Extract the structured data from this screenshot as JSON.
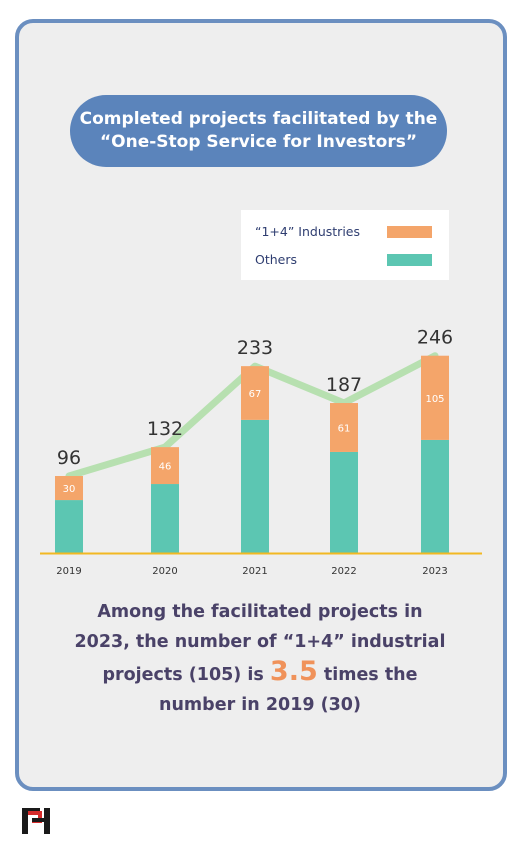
{
  "title": {
    "line1": "Completed projects facilitated by the",
    "line2": "“One-Stop Service for Investors”"
  },
  "legend": {
    "item1": "“1+4” Industries",
    "item2": "Others"
  },
  "colors": {
    "industries": "#f4a56a",
    "others": "#5cc6b2",
    "trend": "#b7e0b0",
    "baseline": "#f2b822",
    "accent": "#f0925a"
  },
  "chart_data": {
    "type": "bar",
    "stacked": true,
    "categories": [
      "2019",
      "2020",
      "2021",
      "2022",
      "2023"
    ],
    "series": [
      {
        "name": "Others",
        "values": [
          66,
          86,
          166,
          126,
          141
        ]
      },
      {
        "name": "“1+4” Industries",
        "values": [
          30,
          46,
          67,
          61,
          105
        ]
      }
    ],
    "totals": [
      96,
      132,
      233,
      187,
      246
    ],
    "trend_line": true,
    "legend_position": "top-right"
  },
  "caption": {
    "part1": "Among the facilitated projects in",
    "part2": "2023, the number of “1+4” industrial",
    "part3": "projects (105) is",
    "highlight": "3.5",
    "part4": "times the",
    "part5": "number in 2019 (30)"
  }
}
